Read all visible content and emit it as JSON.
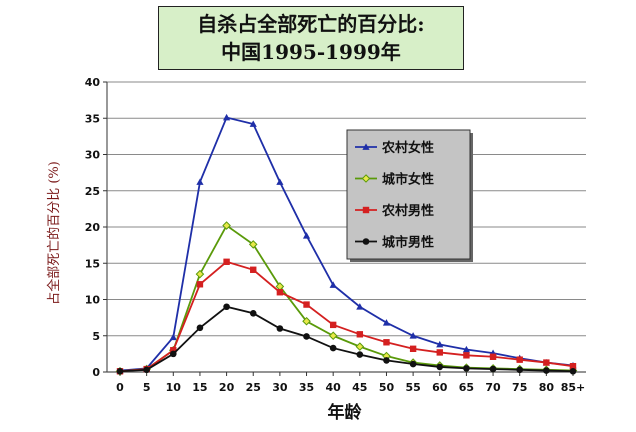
{
  "title": {
    "line1": "自杀占全部死亡的百分比:",
    "line2": "中国1995-1999年"
  },
  "chart_data": {
    "type": "line",
    "title": "自杀占全部死亡的百分比: 中国1995-1999年",
    "xlabel": "年龄",
    "ylabel": "占全部死亡的百分比 (%)",
    "categories": [
      "0",
      "5",
      "10",
      "15",
      "20",
      "25",
      "30",
      "35",
      "40",
      "45",
      "50",
      "55",
      "60",
      "65",
      "70",
      "75",
      "80",
      "85+"
    ],
    "ylim": [
      0,
      40
    ],
    "yticks": [
      0,
      5,
      10,
      15,
      20,
      25,
      30,
      35,
      40
    ],
    "grid": true,
    "legend_position": "right-center",
    "series": [
      {
        "name": "农村女性",
        "color": "#1f2fa8",
        "marker": "triangle",
        "values": [
          0.2,
          0.5,
          4.8,
          26.2,
          35.1,
          34.2,
          26.2,
          18.8,
          12.0,
          9.0,
          6.8,
          5.0,
          3.8,
          3.1,
          2.6,
          1.9,
          1.3,
          0.9
        ]
      },
      {
        "name": "城市女性",
        "color": "#5a9a0a",
        "marker": "diamond",
        "values": [
          0.1,
          0.4,
          3.0,
          13.5,
          20.2,
          17.6,
          11.8,
          7.0,
          5.0,
          3.5,
          2.2,
          1.3,
          0.9,
          0.6,
          0.5,
          0.4,
          0.3,
          0.2
        ]
      },
      {
        "name": "农村男性",
        "color": "#d42020",
        "marker": "square",
        "values": [
          0.1,
          0.4,
          3.0,
          12.1,
          15.2,
          14.1,
          11.0,
          9.3,
          6.5,
          5.2,
          4.1,
          3.2,
          2.7,
          2.3,
          2.1,
          1.7,
          1.3,
          0.8
        ]
      },
      {
        "name": "城市男性",
        "color": "#111111",
        "marker": "circle",
        "values": [
          0.1,
          0.3,
          2.5,
          6.1,
          9.0,
          8.1,
          6.0,
          4.9,
          3.3,
          2.4,
          1.6,
          1.1,
          0.7,
          0.5,
          0.4,
          0.3,
          0.2,
          0.1
        ]
      }
    ]
  }
}
